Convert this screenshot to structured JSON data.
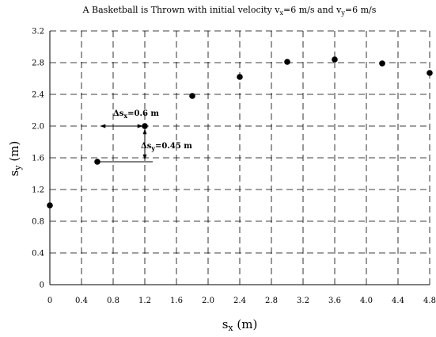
{
  "chart_data": {
    "type": "scatter",
    "title": {
      "main": "A Basketball is Thrown with initial velocity v",
      "sub1": "x",
      "mid": "=6 m/s and v",
      "sub2": "y",
      "end": "=6 m/s"
    },
    "xlabel": {
      "base": "s",
      "sub": "x",
      "unit": " (m)"
    },
    "ylabel": {
      "base": "s",
      "sub": "y",
      "unit": " (m)"
    },
    "xlim": [
      0,
      4.8
    ],
    "ylim": [
      0,
      3.2
    ],
    "xticks": [
      0,
      0.4,
      0.8,
      1.2,
      1.6,
      2.0,
      2.4,
      2.8,
      3.2,
      3.6,
      4.0,
      4.4,
      4.8
    ],
    "xtick_labels": [
      "0",
      "0.4",
      "0.8",
      "1.2",
      "1.6",
      "2.0",
      "2.4",
      "2.8",
      "3.2",
      "3.6",
      "4.0",
      "4.4",
      "4.8"
    ],
    "yticks": [
      0,
      0.4,
      0.8,
      1.2,
      1.6,
      2.0,
      2.4,
      2.8,
      3.2
    ],
    "ytick_labels": [
      "0",
      "0.4",
      "0.8",
      "1.2",
      "1.6",
      "2.0",
      "2.4",
      "2.8",
      "3.2"
    ],
    "grid": true,
    "x": [
      0,
      0.6,
      1.2,
      1.8,
      2.4,
      3.0,
      3.6,
      4.2,
      4.8
    ],
    "y": [
      1.0,
      1.55,
      2.0,
      2.38,
      2.62,
      2.81,
      2.84,
      2.79,
      2.67
    ],
    "annotations": {
      "dx": {
        "base": "Δs",
        "sub": "x",
        "value": "=0.6 m",
        "from": [
          0.6,
          2.0
        ],
        "to": [
          1.2,
          2.0
        ]
      },
      "dy": {
        "base": "Δs",
        "sub": "y",
        "value": "=0.45 m",
        "from": [
          1.2,
          1.55
        ],
        "to": [
          1.2,
          2.0
        ],
        "guide_from": [
          0.6,
          1.55
        ]
      }
    }
  }
}
